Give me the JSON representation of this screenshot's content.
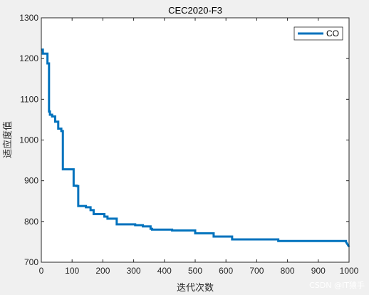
{
  "chart_data": {
    "type": "line",
    "title": "CEC2020-F3",
    "xlabel": "迭代次数",
    "ylabel": "适应度值",
    "xlim": [
      0,
      1000
    ],
    "ylim": [
      700,
      1300
    ],
    "xticks": [
      0,
      100,
      200,
      300,
      400,
      500,
      600,
      700,
      800,
      900,
      1000
    ],
    "yticks": [
      700,
      800,
      900,
      1000,
      1100,
      1200,
      1300
    ],
    "grid": false,
    "legend": {
      "position": "top-right",
      "entries": [
        "CO"
      ]
    },
    "series": [
      {
        "name": "CO",
        "color": "#0072bd",
        "x": [
          1,
          5,
          5,
          20,
          20,
          25,
          25,
          28,
          28,
          35,
          35,
          45,
          45,
          55,
          55,
          65,
          65,
          70,
          70,
          105,
          105,
          115,
          115,
          120,
          120,
          145,
          145,
          160,
          160,
          170,
          170,
          205,
          205,
          215,
          215,
          245,
          245,
          305,
          305,
          330,
          330,
          355,
          355,
          360,
          360,
          425,
          425,
          500,
          500,
          560,
          560,
          620,
          620,
          770,
          770,
          990,
          990,
          1000
        ],
        "y": [
          1222,
          1222,
          1212,
          1212,
          1188,
          1188,
          1070,
          1070,
          1062,
          1062,
          1058,
          1058,
          1045,
          1045,
          1028,
          1028,
          1022,
          1022,
          928,
          928,
          888,
          888,
          887,
          887,
          838,
          838,
          835,
          835,
          828,
          828,
          818,
          818,
          812,
          812,
          807,
          807,
          793,
          793,
          791,
          791,
          788,
          788,
          782,
          782,
          780,
          780,
          778,
          778,
          771,
          771,
          763,
          763,
          756,
          756,
          752,
          752,
          750,
          738
        ]
      }
    ]
  },
  "watermark": "CSDN @IT猿手"
}
